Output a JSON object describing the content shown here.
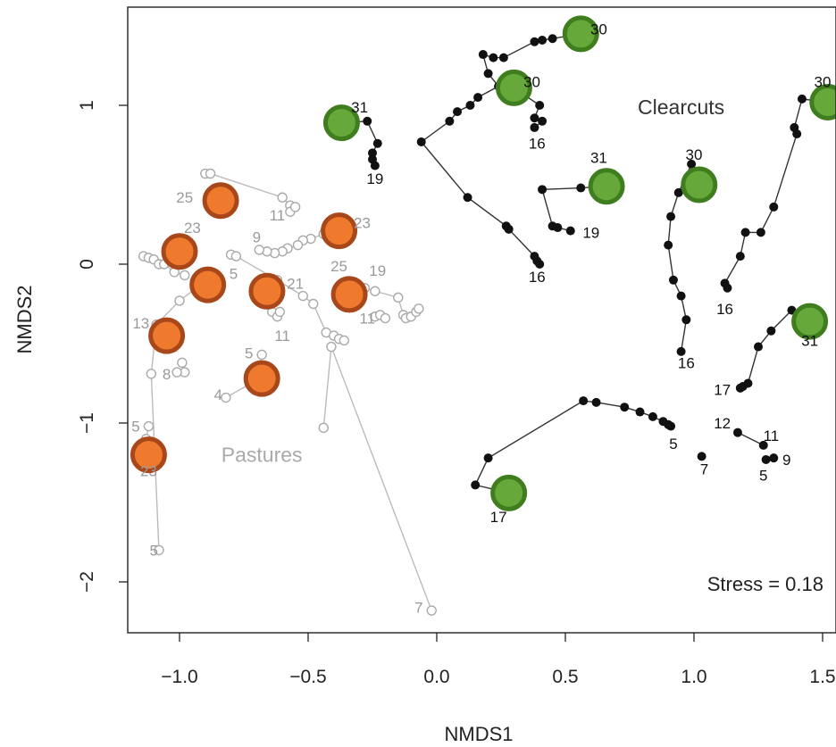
{
  "chart_data": {
    "type": "scatter",
    "xlabel": "NMDS1",
    "ylabel": "NMDS2",
    "xlim": [
      -1.25,
      1.55
    ],
    "ylim": [
      -2.3,
      1.6
    ],
    "xticks": [
      -1.0,
      -0.5,
      0.0,
      0.5,
      1.0,
      1.5
    ],
    "xtick_labels": [
      "−1.0",
      "−0.5",
      "0.0",
      "0.5",
      "1.0",
      "1.5"
    ],
    "yticks": [
      -2,
      -1,
      0,
      1
    ],
    "ytick_labels": [
      "−2",
      "−1",
      "0",
      "1"
    ],
    "grid": false,
    "stress_label": "Stress = 0.18",
    "colors": {
      "clearcut_points": "#111111",
      "clearcut_lines": "#333333",
      "pasture_points": "#aaaaaa",
      "pasture_lines": "#bbbbbb",
      "clearcut_markers_fill": "#66a83a",
      "clearcut_markers_edge": "#3f7d1e",
      "pasture_markers_fill": "#ef7a2e",
      "pasture_markers_edge": "#a8471a"
    },
    "group_labels": [
      {
        "text": "Clearcuts",
        "x": 0.95,
        "y": 0.99,
        "color": "#333333"
      },
      {
        "text": "Pastures",
        "x": -0.68,
        "y": -1.2,
        "color": "#aaaaaa"
      }
    ],
    "series": [
      {
        "group": "Clearcuts",
        "points": [
          [
            0.56,
            1.45
          ],
          [
            0.45,
            1.42
          ],
          [
            0.41,
            1.41
          ],
          [
            0.38,
            1.4
          ],
          [
            0.26,
            1.3
          ],
          [
            0.22,
            1.3
          ],
          [
            0.18,
            1.32
          ],
          [
            0.2,
            1.2
          ],
          [
            0.24,
            1.12
          ],
          [
            0.16,
            1.05
          ],
          [
            0.13,
            1.0
          ],
          [
            0.08,
            0.96
          ],
          [
            0.05,
            0.9
          ],
          [
            -0.06,
            0.77
          ],
          [
            0.12,
            0.42
          ],
          [
            0.27,
            0.24
          ],
          [
            0.28,
            0.22
          ],
          [
            0.38,
            0.05
          ],
          [
            0.39,
            0.02
          ],
          [
            0.4,
            0.0
          ]
        ]
      },
      {
        "group": "Clearcuts",
        "points": [
          [
            0.3,
            1.11
          ],
          [
            0.4,
            1.0
          ],
          [
            0.38,
            0.92
          ],
          [
            0.41,
            0.9
          ],
          [
            0.38,
            0.86
          ]
        ]
      },
      {
        "group": "Clearcuts",
        "points": [
          [
            -0.37,
            0.89
          ],
          [
            -0.27,
            0.9
          ],
          [
            -0.23,
            0.76
          ],
          [
            -0.25,
            0.7
          ],
          [
            -0.25,
            0.66
          ],
          [
            -0.24,
            0.62
          ]
        ]
      },
      {
        "group": "Clearcuts",
        "points": [
          [
            0.66,
            0.49
          ],
          [
            0.56,
            0.48
          ],
          [
            0.41,
            0.47
          ],
          [
            0.45,
            0.24
          ],
          [
            0.47,
            0.23
          ],
          [
            0.52,
            0.21
          ]
        ]
      },
      {
        "group": "Clearcuts",
        "points": [
          [
            1.02,
            0.5
          ],
          [
            0.99,
            0.63
          ],
          [
            0.94,
            0.45
          ],
          [
            0.91,
            0.3
          ],
          [
            0.9,
            0.12
          ],
          [
            0.92,
            -0.1
          ],
          [
            0.95,
            -0.2
          ],
          [
            0.97,
            -0.35
          ],
          [
            0.95,
            -0.55
          ]
        ]
      },
      {
        "group": "Clearcuts",
        "points": [
          [
            1.52,
            1.02
          ],
          [
            1.42,
            1.04
          ],
          [
            1.39,
            0.86
          ],
          [
            1.4,
            0.82
          ],
          [
            1.31,
            0.36
          ],
          [
            1.26,
            0.2
          ],
          [
            1.2,
            0.2
          ],
          [
            1.18,
            0.05
          ],
          [
            1.12,
            -0.12
          ],
          [
            1.13,
            -0.15
          ]
        ]
      },
      {
        "group": "Clearcuts",
        "points": [
          [
            1.45,
            -0.36
          ],
          [
            1.38,
            -0.29
          ],
          [
            1.3,
            -0.42
          ],
          [
            1.25,
            -0.52
          ],
          [
            1.21,
            -0.75
          ],
          [
            1.19,
            -0.77
          ],
          [
            1.18,
            -0.78
          ]
        ]
      },
      {
        "group": "Clearcuts",
        "points": [
          [
            0.28,
            -1.44
          ],
          [
            0.15,
            -1.39
          ],
          [
            0.2,
            -1.22
          ],
          [
            0.57,
            -0.86
          ],
          [
            0.62,
            -0.87
          ],
          [
            0.73,
            -0.9
          ],
          [
            0.79,
            -0.93
          ],
          [
            0.84,
            -0.96
          ],
          [
            0.88,
            -0.99
          ],
          [
            0.9,
            -1.01
          ],
          [
            0.91,
            -1.02
          ]
        ]
      },
      {
        "group": "Clearcuts",
        "points": [
          [
            1.17,
            -1.06
          ],
          [
            1.27,
            -1.14
          ]
        ]
      },
      {
        "group": "Clearcuts",
        "points": [
          [
            1.28,
            -1.23
          ],
          [
            1.31,
            -1.22
          ]
        ]
      },
      {
        "group": "Clearcuts",
        "points": [
          [
            1.03,
            -1.21
          ]
        ]
      },
      {
        "group": "Pastures",
        "points": [
          [
            -0.9,
            0.57
          ],
          [
            -0.88,
            0.57
          ],
          [
            -0.6,
            0.42
          ],
          [
            -0.57,
            0.37
          ],
          [
            -0.57,
            0.33
          ],
          [
            -0.55,
            0.36
          ]
        ]
      },
      {
        "group": "Pastures",
        "points": [
          [
            -0.36,
            0.21
          ],
          [
            -0.41,
            0.2
          ],
          [
            -0.44,
            0.19
          ],
          [
            -0.49,
            0.16
          ],
          [
            -0.52,
            0.15
          ],
          [
            -0.54,
            0.12
          ],
          [
            -0.58,
            0.1
          ],
          [
            -0.6,
            0.08
          ],
          [
            -0.63,
            0.07
          ],
          [
            -0.66,
            0.08
          ],
          [
            -0.69,
            0.09
          ]
        ]
      },
      {
        "group": "Pastures",
        "points": [
          [
            -1.14,
            0.05
          ],
          [
            -1.12,
            0.04
          ],
          [
            -1.1,
            0.03
          ],
          [
            -1.08,
            0.0
          ],
          [
            -1.06,
            0.0
          ],
          [
            -1.02,
            -0.05
          ],
          [
            -0.98,
            -0.07
          ]
        ]
      },
      {
        "group": "Pastures",
        "points": [
          [
            -0.8,
            0.06
          ],
          [
            -0.78,
            0.05
          ],
          [
            -0.62,
            -0.1
          ],
          [
            -0.52,
            -0.2
          ],
          [
            -0.48,
            -0.25
          ],
          [
            -0.43,
            -0.43
          ],
          [
            -0.4,
            -0.45
          ],
          [
            -0.38,
            -0.47
          ],
          [
            -0.36,
            -0.48
          ]
        ]
      },
      {
        "group": "Pastures",
        "points": [
          [
            -0.34,
            -0.18
          ],
          [
            -0.28,
            -0.15
          ],
          [
            -0.24,
            -0.17
          ],
          [
            -0.15,
            -0.21
          ],
          [
            -0.13,
            -0.32
          ],
          [
            -0.12,
            -0.34
          ],
          [
            -0.1,
            -0.33
          ],
          [
            -0.08,
            -0.3
          ],
          [
            -0.07,
            -0.28
          ]
        ]
      },
      {
        "group": "Pastures",
        "points": [
          [
            -0.24,
            -0.33
          ],
          [
            -0.22,
            -0.32
          ],
          [
            -0.2,
            -0.34
          ]
        ]
      },
      {
        "group": "Pastures",
        "points": [
          [
            -0.88,
            -0.13
          ],
          [
            -0.91,
            -0.12
          ],
          [
            -1.0,
            -0.23
          ],
          [
            -1.09,
            -0.38
          ],
          [
            -1.11,
            -0.69
          ],
          [
            -1.08,
            -1.8
          ]
        ]
      },
      {
        "group": "Pastures",
        "points": [
          [
            -0.66,
            -0.18
          ],
          [
            -0.64,
            -0.3
          ],
          [
            -0.62,
            -0.33
          ],
          [
            -0.61,
            -0.3
          ]
        ]
      },
      {
        "group": "Pastures",
        "points": [
          [
            -0.99,
            -0.62
          ],
          [
            -0.98,
            -0.68
          ],
          [
            -1.01,
            -0.68
          ]
        ]
      },
      {
        "group": "Pastures",
        "points": [
          [
            -0.82,
            -0.84
          ],
          [
            -0.7,
            -0.73
          ],
          [
            -0.68,
            -0.57
          ]
        ]
      },
      {
        "group": "Pastures",
        "points": [
          [
            -1.12,
            -1.02
          ],
          [
            -1.13,
            -1.1
          ]
        ]
      },
      {
        "group": "Pastures",
        "points": [
          [
            -0.44,
            -1.03
          ],
          [
            -0.41,
            -0.52
          ],
          [
            -0.02,
            -2.18
          ]
        ]
      }
    ],
    "highlight_markers": [
      {
        "group": "Clearcuts",
        "x": 0.56,
        "y": 1.45
      },
      {
        "group": "Clearcuts",
        "x": 0.3,
        "y": 1.11
      },
      {
        "group": "Clearcuts",
        "x": -0.37,
        "y": 0.89
      },
      {
        "group": "Clearcuts",
        "x": 0.66,
        "y": 0.49
      },
      {
        "group": "Clearcuts",
        "x": 1.02,
        "y": 0.5
      },
      {
        "group": "Clearcuts",
        "x": 1.52,
        "y": 1.02
      },
      {
        "group": "Clearcuts",
        "x": 1.45,
        "y": -0.36
      },
      {
        "group": "Clearcuts",
        "x": 0.28,
        "y": -1.44
      },
      {
        "group": "Pastures",
        "x": -0.84,
        "y": 0.4
      },
      {
        "group": "Pastures",
        "x": -1.0,
        "y": 0.08
      },
      {
        "group": "Pastures",
        "x": -0.38,
        "y": 0.21
      },
      {
        "group": "Pastures",
        "x": -0.89,
        "y": -0.13
      },
      {
        "group": "Pastures",
        "x": -0.66,
        "y": -0.17
      },
      {
        "group": "Pastures",
        "x": -0.34,
        "y": -0.19
      },
      {
        "group": "Pastures",
        "x": -1.05,
        "y": -0.45
      },
      {
        "group": "Pastures",
        "x": -0.68,
        "y": -0.72
      },
      {
        "group": "Pastures",
        "x": -1.12,
        "y": -1.2
      }
    ],
    "point_labels": [
      {
        "group": "Clearcuts",
        "text": "30",
        "x": 0.63,
        "y": 1.48
      },
      {
        "group": "Clearcuts",
        "text": "30",
        "x": 0.37,
        "y": 1.15
      },
      {
        "group": "Clearcuts",
        "text": "16",
        "x": 0.39,
        "y": 0.76
      },
      {
        "group": "Clearcuts",
        "text": "31",
        "x": -0.3,
        "y": 0.99
      },
      {
        "group": "Clearcuts",
        "text": "19",
        "x": -0.24,
        "y": 0.54
      },
      {
        "group": "Clearcuts",
        "text": "31",
        "x": 0.63,
        "y": 0.67
      },
      {
        "group": "Clearcuts",
        "text": "19",
        "x": 0.6,
        "y": 0.2
      },
      {
        "group": "Clearcuts",
        "text": "16",
        "x": 0.39,
        "y": -0.08
      },
      {
        "group": "Clearcuts",
        "text": "30",
        "x": 1.0,
        "y": 0.69
      },
      {
        "group": "Clearcuts",
        "text": "30",
        "x": 1.5,
        "y": 1.15
      },
      {
        "group": "Clearcuts",
        "text": "16",
        "x": 0.97,
        "y": -0.62
      },
      {
        "group": "Clearcuts",
        "text": "16",
        "x": 1.12,
        "y": -0.28
      },
      {
        "group": "Clearcuts",
        "text": "31",
        "x": 1.45,
        "y": -0.48
      },
      {
        "group": "Clearcuts",
        "text": "17",
        "x": 1.11,
        "y": -0.79
      },
      {
        "group": "Clearcuts",
        "text": "5",
        "x": 0.92,
        "y": -1.13
      },
      {
        "group": "Clearcuts",
        "text": "12",
        "x": 1.11,
        "y": -1.0
      },
      {
        "group": "Clearcuts",
        "text": "11",
        "x": 1.3,
        "y": -1.08
      },
      {
        "group": "Clearcuts",
        "text": "9",
        "x": 1.36,
        "y": -1.23
      },
      {
        "group": "Clearcuts",
        "text": "5",
        "x": 1.27,
        "y": -1.33
      },
      {
        "group": "Clearcuts",
        "text": "7",
        "x": 1.04,
        "y": -1.29
      },
      {
        "group": "Clearcuts",
        "text": "17",
        "x": 0.24,
        "y": -1.59
      },
      {
        "group": "Pastures",
        "text": "25",
        "x": -0.98,
        "y": 0.42
      },
      {
        "group": "Pastures",
        "text": "23",
        "x": -0.95,
        "y": 0.23
      },
      {
        "group": "Pastures",
        "text": "11",
        "x": -0.62,
        "y": 0.31
      },
      {
        "group": "Pastures",
        "text": "23",
        "x": -0.29,
        "y": 0.26
      },
      {
        "group": "Pastures",
        "text": "9",
        "x": -0.7,
        "y": 0.17
      },
      {
        "group": "Pastures",
        "text": "25",
        "x": -0.38,
        "y": -0.01
      },
      {
        "group": "Pastures",
        "text": "19",
        "x": -0.23,
        "y": -0.04
      },
      {
        "group": "Pastures",
        "text": "5",
        "x": -0.79,
        "y": -0.06
      },
      {
        "group": "Pastures",
        "text": "21",
        "x": -0.55,
        "y": -0.12
      },
      {
        "group": "Pastures",
        "text": "11",
        "x": -0.27,
        "y": -0.34
      },
      {
        "group": "Pastures",
        "text": "11",
        "x": -0.6,
        "y": -0.45
      },
      {
        "group": "Pastures",
        "text": "13",
        "x": -1.15,
        "y": -0.37
      },
      {
        "group": "Pastures",
        "text": "5",
        "x": -0.73,
        "y": -0.56
      },
      {
        "group": "Pastures",
        "text": "8",
        "x": -1.05,
        "y": -0.69
      },
      {
        "group": "Pastures",
        "text": "4",
        "x": -0.85,
        "y": -0.82
      },
      {
        "group": "Pastures",
        "text": "5",
        "x": -1.17,
        "y": -1.02
      },
      {
        "group": "Pastures",
        "text": "23",
        "x": -1.12,
        "y": -1.3
      },
      {
        "group": "Pastures",
        "text": "5",
        "x": -1.1,
        "y": -1.8
      },
      {
        "group": "Pastures",
        "text": "7",
        "x": -0.07,
        "y": -2.16
      }
    ]
  }
}
